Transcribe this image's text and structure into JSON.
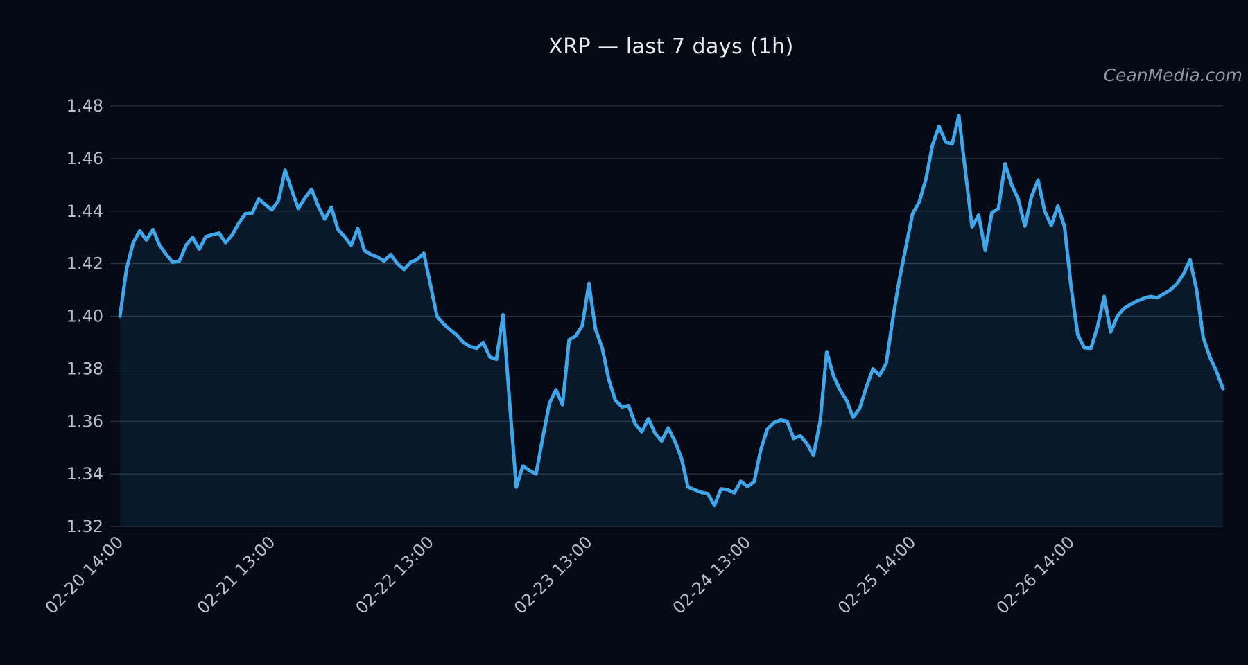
{
  "title": "XRP — last 7 days (1h)",
  "watermark": "CeanMedia.com",
  "colors": {
    "background": "#050a14",
    "line": "#3ea6e9",
    "area_fill": "rgba(62,166,233,0.10)",
    "grid": "#2a3142",
    "tick_label": "#b9bdc7",
    "title_color": "#e9ebef",
    "watermark_color": "#8f949e"
  },
  "chart_data": {
    "type": "line",
    "title": "XRP — last 7 days (1h)",
    "interval": "1h",
    "ylim": [
      1.32,
      1.48
    ],
    "y_ticks": [
      1.32,
      1.34,
      1.36,
      1.38,
      1.4,
      1.42,
      1.44,
      1.46,
      1.48
    ],
    "grid": "horizontal-only",
    "legend": "none",
    "x_ticks": [
      {
        "index": 0,
        "label": "02-20 14:00"
      },
      {
        "index": 23,
        "label": "02-21 13:00"
      },
      {
        "index": 47,
        "label": "02-22 13:00"
      },
      {
        "index": 71,
        "label": "02-23 13:00"
      },
      {
        "index": 95,
        "label": "02-24 13:00"
      },
      {
        "index": 120,
        "label": "02-25 14:00"
      },
      {
        "index": 144,
        "label": "02-26 14:00"
      }
    ],
    "series": [
      {
        "name": "XRP",
        "values": [
          1.4,
          1.418,
          1.428,
          1.4325,
          1.429,
          1.433,
          1.427,
          1.4235,
          1.4205,
          1.421,
          1.427,
          1.43,
          1.4255,
          1.4303,
          1.431,
          1.4316,
          1.428,
          1.431,
          1.4355,
          1.439,
          1.4392,
          1.4446,
          1.4425,
          1.4405,
          1.444,
          1.4556,
          1.448,
          1.441,
          1.445,
          1.4483,
          1.442,
          1.437,
          1.4415,
          1.433,
          1.4303,
          1.427,
          1.4334,
          1.425,
          1.4235,
          1.4225,
          1.421,
          1.4235,
          1.42,
          1.4178,
          1.4205,
          1.4216,
          1.424,
          1.412,
          1.4,
          1.397,
          1.3948,
          1.3928,
          1.39,
          1.3885,
          1.3878,
          1.39,
          1.3845,
          1.3836,
          1.4005,
          1.367,
          1.335,
          1.343,
          1.3413,
          1.34,
          1.3536,
          1.3668,
          1.372,
          1.3663,
          1.391,
          1.3925,
          1.3965,
          1.4125,
          1.395,
          1.388,
          1.376,
          1.368,
          1.3655,
          1.366,
          1.359,
          1.356,
          1.361,
          1.3555,
          1.3525,
          1.3575,
          1.3525,
          1.346,
          1.335,
          1.334,
          1.333,
          1.3325,
          1.328,
          1.3343,
          1.334,
          1.3328,
          1.3372,
          1.3352,
          1.337,
          1.349,
          1.357,
          1.3595,
          1.3605,
          1.36,
          1.3535,
          1.3545,
          1.3515,
          1.347,
          1.36,
          1.3865,
          1.3775,
          1.372,
          1.368,
          1.3615,
          1.365,
          1.373,
          1.38,
          1.3775,
          1.382,
          1.399,
          1.414,
          1.4265,
          1.439,
          1.4435,
          1.452,
          1.465,
          1.4723,
          1.4663,
          1.4655,
          1.4764,
          1.455,
          1.434,
          1.4385,
          1.425,
          1.4395,
          1.441,
          1.458,
          1.45,
          1.4445,
          1.4343,
          1.4455,
          1.4518,
          1.44,
          1.4345,
          1.442,
          1.434,
          1.411,
          1.393,
          1.388,
          1.3878,
          1.396,
          1.4075,
          1.394,
          1.4,
          1.403,
          1.4045,
          1.4058,
          1.4068,
          1.4075,
          1.407,
          1.4085,
          1.41,
          1.4123,
          1.416,
          1.4215,
          1.41,
          1.392,
          1.3845,
          1.379,
          1.3724
        ]
      }
    ]
  }
}
